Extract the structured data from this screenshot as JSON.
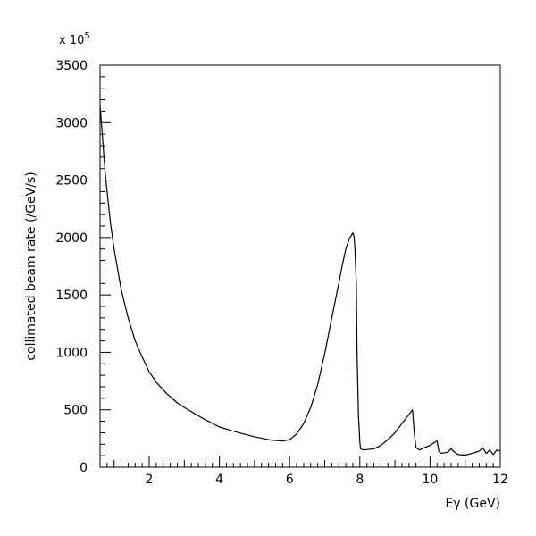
{
  "chart_data": {
    "type": "line",
    "title": "",
    "xlabel": "Eγ (GeV)",
    "ylabel": "collimated beam rate (/GeV/s)",
    "y_multiplier": "x 10",
    "y_multiplier_exp": "5",
    "xlim": [
      0.6,
      12
    ],
    "ylim": [
      0,
      3500
    ],
    "xticks": [
      2,
      4,
      6,
      8,
      10,
      12
    ],
    "yticks": [
      0,
      500,
      1000,
      1500,
      2000,
      2500,
      3000,
      3500
    ],
    "grid": false,
    "series": [
      {
        "x": [
          0.6,
          0.65,
          0.7,
          0.75,
          0.8,
          0.9,
          1.0,
          1.2,
          1.4,
          1.6,
          1.8,
          2.0,
          2.2,
          2.5,
          2.8,
          3.0,
          3.5,
          4.0,
          4.5,
          5.0,
          5.5,
          5.8,
          6.0,
          6.2,
          6.4,
          6.6,
          6.8,
          7.0,
          7.2,
          7.4,
          7.5,
          7.6,
          7.7,
          7.8,
          7.84,
          7.86,
          7.9,
          7.92,
          7.96,
          8.0,
          8.02,
          8.1,
          8.4,
          8.6,
          8.8,
          9.0,
          9.2,
          9.35,
          9.5,
          9.55,
          9.6,
          9.7,
          9.8,
          10.0,
          10.2,
          10.25,
          10.3,
          10.5,
          10.6,
          10.7,
          10.8,
          11.0,
          11.2,
          11.4,
          11.5,
          11.6,
          11.7,
          11.8,
          11.9,
          12.0
        ],
        "y": [
          3150,
          2950,
          2750,
          2550,
          2400,
          2120,
          1900,
          1550,
          1300,
          1100,
          960,
          830,
          740,
          640,
          560,
          520,
          430,
          350,
          305,
          265,
          235,
          228,
          240,
          290,
          380,
          520,
          720,
          990,
          1300,
          1600,
          1760,
          1900,
          1990,
          2040,
          2000,
          1900,
          1600,
          1000,
          450,
          220,
          160,
          150,
          160,
          190,
          240,
          300,
          380,
          440,
          500,
          300,
          170,
          150,
          165,
          190,
          230,
          140,
          120,
          130,
          160,
          130,
          110,
          105,
          120,
          140,
          170,
          120,
          150,
          110,
          150,
          140
        ]
      }
    ]
  }
}
